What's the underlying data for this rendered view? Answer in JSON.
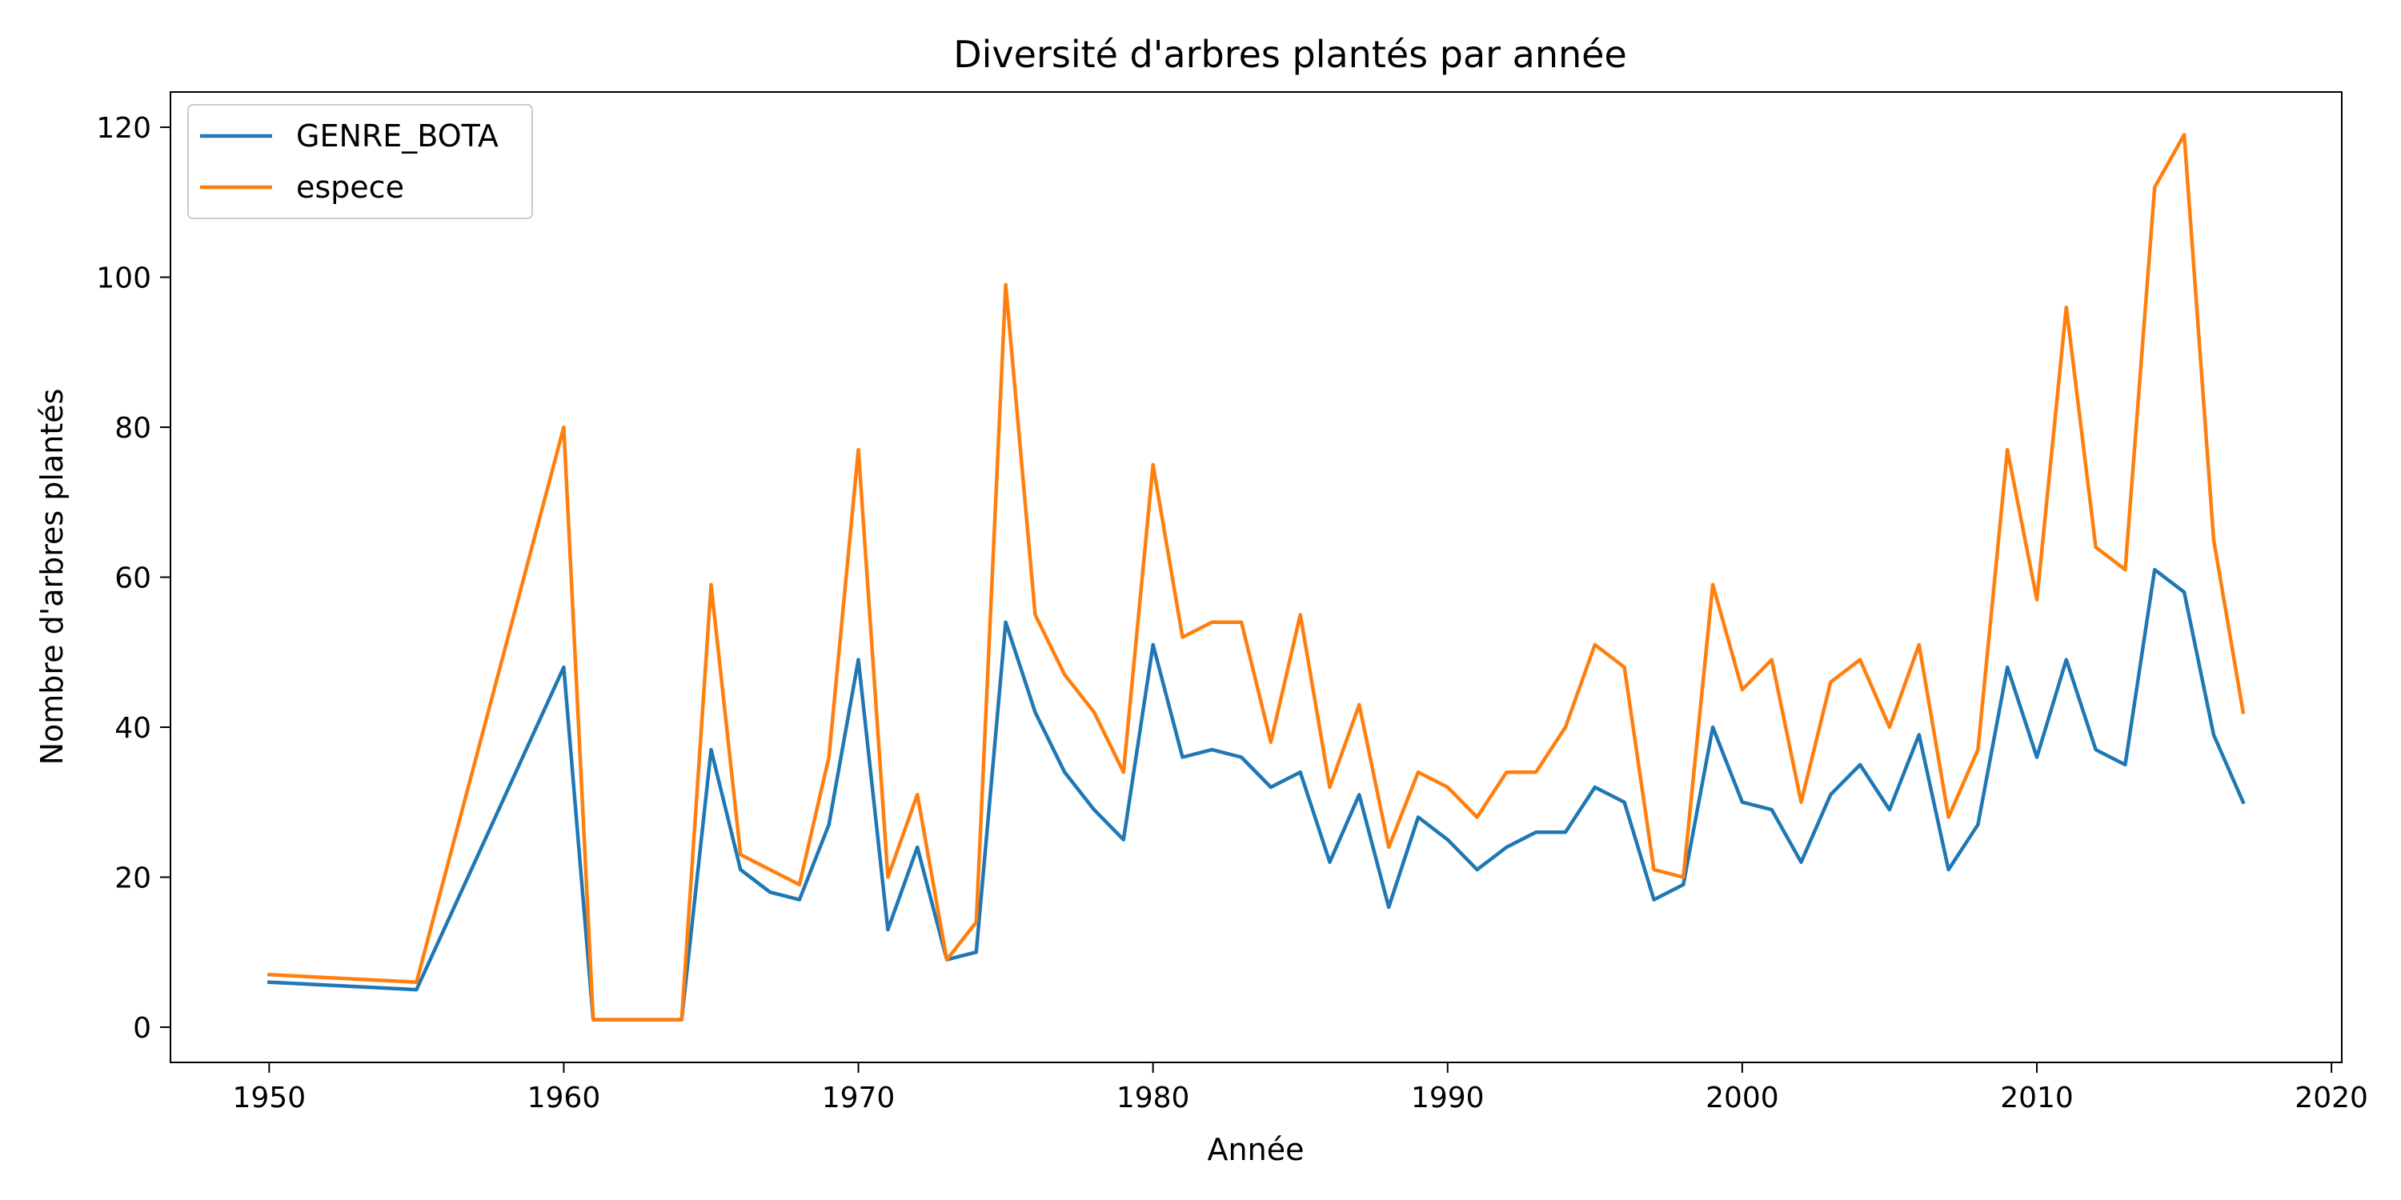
{
  "chart_data": {
    "type": "line",
    "title": "Diversité d'arbres plantés par année",
    "xlabel": "Année",
    "ylabel": "Nombre d'arbres plantés",
    "xlim": [
      1946.65,
      2020.35
    ],
    "ylim": [
      -4.7,
      124.7
    ],
    "x_ticks": [
      1950,
      1960,
      1970,
      1980,
      1990,
      2000,
      2010,
      2020
    ],
    "y_ticks": [
      0,
      20,
      40,
      60,
      80,
      100,
      120
    ],
    "grid": false,
    "legend": "top-left",
    "x": [
      1950,
      1955,
      1960,
      1961,
      1962,
      1963,
      1964,
      1965,
      1966,
      1967,
      1968,
      1969,
      1970,
      1971,
      1972,
      1973,
      1974,
      1975,
      1976,
      1977,
      1978,
      1979,
      1980,
      1981,
      1982,
      1983,
      1984,
      1985,
      1986,
      1987,
      1988,
      1989,
      1990,
      1991,
      1992,
      1993,
      1994,
      1995,
      1996,
      1997,
      1998,
      1999,
      2000,
      2001,
      2002,
      2003,
      2004,
      2005,
      2006,
      2007,
      2008,
      2009,
      2010,
      2011,
      2012,
      2013,
      2014,
      2015,
      2016,
      2017
    ],
    "series": [
      {
        "name": "GENRE_BOTA",
        "color": "#1f77b4",
        "values": [
          6,
          5,
          48,
          1,
          1,
          1,
          1,
          37,
          21,
          18,
          17,
          27,
          49,
          13,
          24,
          9,
          10,
          54,
          42,
          34,
          29,
          25,
          51,
          36,
          37,
          36,
          32,
          34,
          22,
          31,
          16,
          28,
          25,
          21,
          24,
          26,
          26,
          32,
          30,
          17,
          19,
          40,
          30,
          29,
          22,
          31,
          35,
          29,
          39,
          21,
          27,
          48,
          36,
          49,
          37,
          35,
          61,
          58,
          39,
          30
        ]
      },
      {
        "name": "espece",
        "color": "#ff7f0e",
        "values": [
          7,
          6,
          80,
          1,
          1,
          1,
          1,
          59,
          23,
          21,
          19,
          36,
          77,
          20,
          31,
          9,
          14,
          99,
          55,
          47,
          42,
          34,
          75,
          52,
          54,
          54,
          38,
          55,
          32,
          43,
          24,
          34,
          32,
          28,
          34,
          34,
          40,
          51,
          48,
          21,
          20,
          59,
          45,
          49,
          30,
          46,
          49,
          40,
          51,
          28,
          37,
          77,
          57,
          96,
          64,
          61,
          112,
          119,
          65,
          42
        ]
      }
    ]
  }
}
